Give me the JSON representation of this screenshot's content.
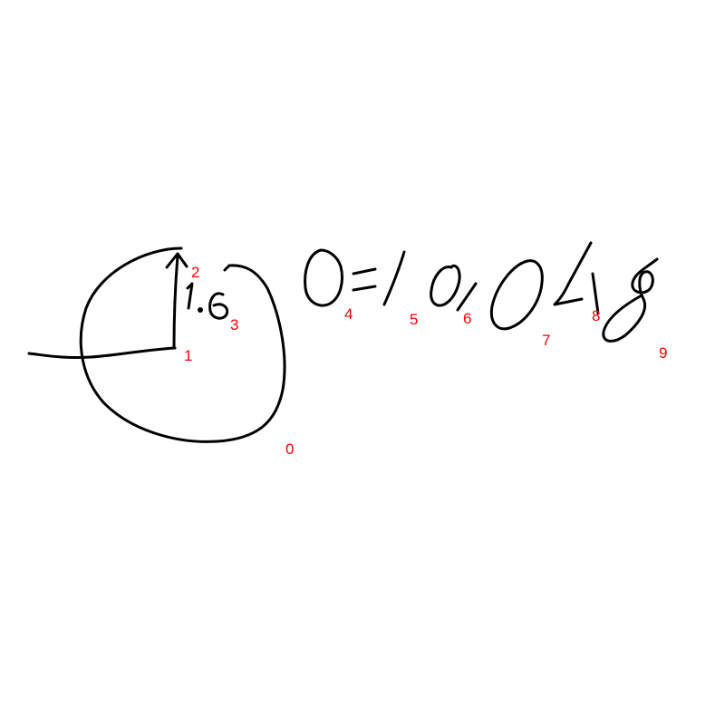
{
  "colors": {
    "ink": "#000000",
    "label": "#ff0000",
    "background": "#ffffff"
  },
  "stroke_labels": {
    "circle": "0",
    "radius_line": "1",
    "arrow": "2",
    "radius_value": "3",
    "theta": "4",
    "equals": "5",
    "one": "6",
    "zero_a": "7",
    "four": "8",
    "eight": "9"
  }
}
